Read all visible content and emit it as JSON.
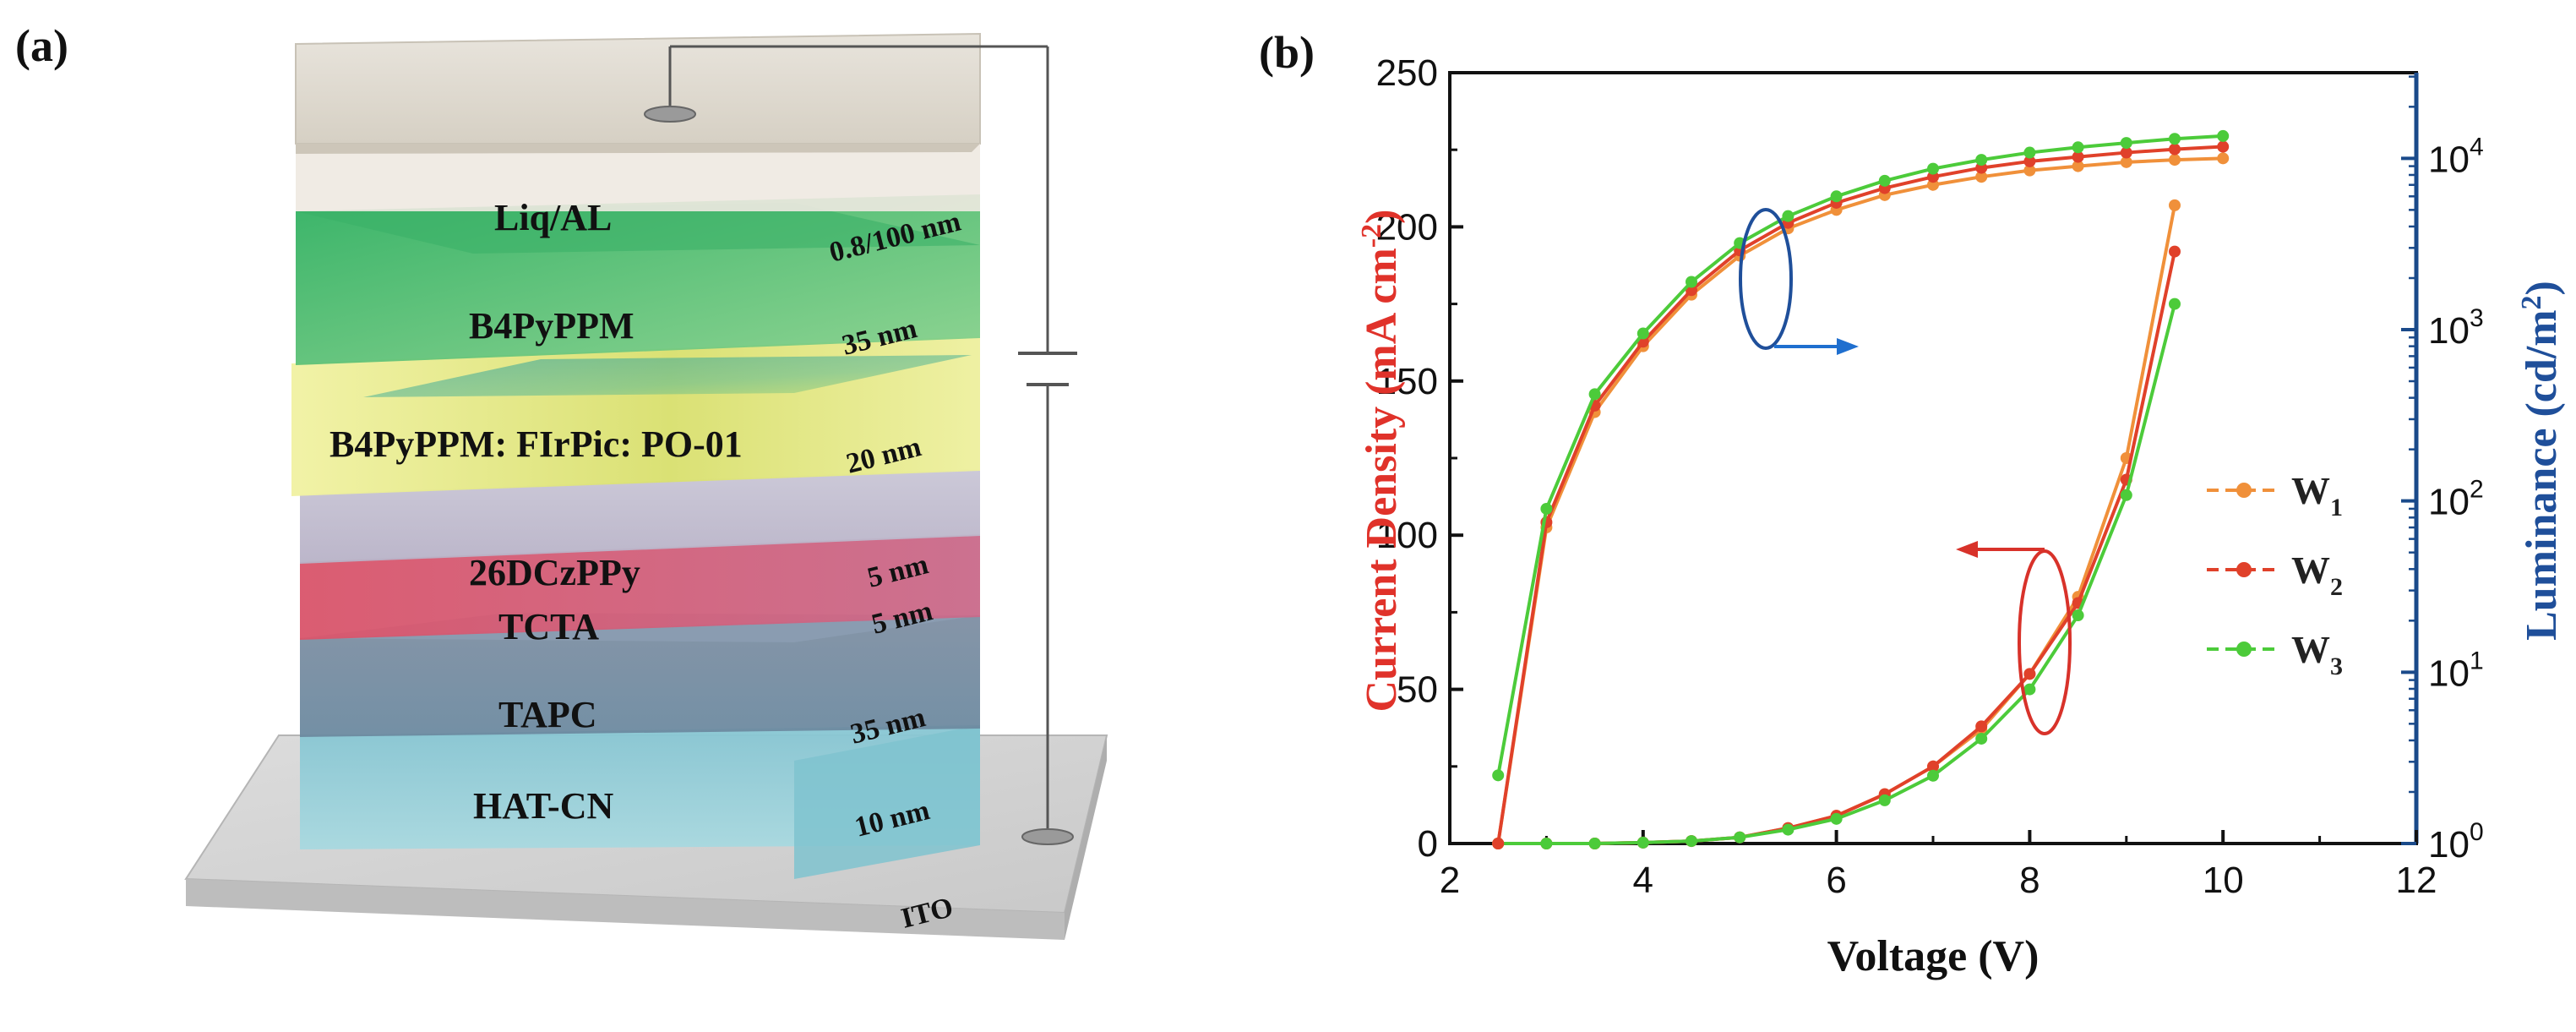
{
  "panel_a": {
    "label": "(a)",
    "layers": [
      {
        "name": "Liq/AL",
        "thickness": "0.8/100 nm"
      },
      {
        "name": "B4PyPPM",
        "thickness": "35 nm"
      },
      {
        "name": "B4PyPPM: FIrPic: PO-01",
        "thickness": "20 nm"
      },
      {
        "name": "26DCzPPy",
        "thickness": "5 nm"
      },
      {
        "name": "TCTA",
        "thickness": "5 nm"
      },
      {
        "name": "TAPC",
        "thickness": "35 nm"
      },
      {
        "name": "HAT-CN",
        "thickness": "10 nm"
      }
    ],
    "substrate": "ITO"
  },
  "panel_b_label": "(b)",
  "chart_data": {
    "type": "line",
    "x_label": "Voltage (V)",
    "y_left_label": "Current Density (mA cm",
    "y_left_label_sup": "-2",
    "y_left_label_end": ")",
    "y_right_label": "Luminance (cd/m",
    "y_right_label_sup": "2",
    "y_right_label_end": ")",
    "xlim": [
      2,
      12
    ],
    "ylim_left": [
      0,
      250
    ],
    "ylim_right_log10": [
      0,
      4.5
    ],
    "x_ticks": [
      "2",
      "4",
      "6",
      "8",
      "10",
      "12"
    ],
    "y_left_ticks": [
      "0",
      "50",
      "100",
      "150",
      "200",
      "250"
    ],
    "y_right_ticks": [
      {
        "base": "10",
        "exp": "0"
      },
      {
        "base": "10",
        "exp": "1"
      },
      {
        "base": "10",
        "exp": "2"
      },
      {
        "base": "10",
        "exp": "3"
      },
      {
        "base": "10",
        "exp": "4"
      }
    ],
    "legend": [
      {
        "base": "W",
        "sub": "1",
        "color": "#f0903a"
      },
      {
        "base": "W",
        "sub": "2",
        "color": "#e0412a"
      },
      {
        "base": "W",
        "sub": "3",
        "color": "#4ccb3a"
      }
    ],
    "series": [
      {
        "name": "W1 current density",
        "axis": "left",
        "color": "#f0903a",
        "x": [
          2.5,
          3,
          3.5,
          4,
          4.5,
          5,
          5.5,
          6,
          6.5,
          7,
          7.5,
          8,
          8.5,
          9,
          9.5
        ],
        "y": [
          0,
          0,
          0,
          0.3,
          0.8,
          2,
          5,
          9,
          16,
          25,
          37,
          55,
          80,
          125,
          207
        ]
      },
      {
        "name": "W2 current density",
        "axis": "left",
        "color": "#e0412a",
        "x": [
          2.5,
          3,
          3.5,
          4,
          4.5,
          5,
          5.5,
          6,
          6.5,
          7,
          7.5,
          8,
          8.5,
          9,
          9.5
        ],
        "y": [
          0,
          0,
          0,
          0.3,
          0.8,
          2,
          5,
          9,
          16,
          25,
          38,
          55,
          78,
          118,
          192
        ]
      },
      {
        "name": "W3 current density",
        "axis": "left",
        "color": "#4ccb3a",
        "x": [
          2.5,
          3,
          3.5,
          4,
          4.5,
          5,
          5.5,
          6,
          6.5,
          7,
          7.5,
          8,
          8.5,
          9,
          9.5
        ],
        "y": [
          0,
          0,
          0,
          0.3,
          0.8,
          2,
          4.5,
          8,
          14,
          22,
          34,
          50,
          74,
          113,
          175
        ]
      },
      {
        "name": "W1 luminance",
        "axis": "right",
        "color": "#f0903a",
        "x": [
          2.5,
          3,
          3.5,
          4,
          4.5,
          5,
          5.5,
          6,
          6.5,
          7,
          7.5,
          8,
          8.5,
          9,
          9.5,
          10
        ],
        "y": [
          1,
          70,
          330,
          800,
          1600,
          2700,
          3900,
          5000,
          6100,
          7000,
          7800,
          8500,
          9000,
          9500,
          9800,
          10000
        ]
      },
      {
        "name": "W2 luminance",
        "axis": "right",
        "color": "#e0412a",
        "x": [
          2.5,
          3,
          3.5,
          4,
          4.5,
          5,
          5.5,
          6,
          6.5,
          7,
          7.5,
          8,
          8.5,
          9,
          9.5,
          10
        ],
        "y": [
          1,
          75,
          360,
          850,
          1700,
          2900,
          4200,
          5500,
          6700,
          7800,
          8800,
          9600,
          10200,
          10800,
          11300,
          11700
        ]
      },
      {
        "name": "W3 luminance",
        "axis": "right",
        "color": "#4ccb3a",
        "x": [
          2.5,
          3,
          3.5,
          4,
          4.5,
          5,
          5.5,
          6,
          6.5,
          7,
          7.5,
          8,
          8.5,
          9,
          9.5,
          10
        ],
        "y": [
          2.5,
          90,
          420,
          950,
          1900,
          3200,
          4600,
          6000,
          7400,
          8700,
          9800,
          10800,
          11600,
          12300,
          13000,
          13500
        ]
      }
    ]
  }
}
